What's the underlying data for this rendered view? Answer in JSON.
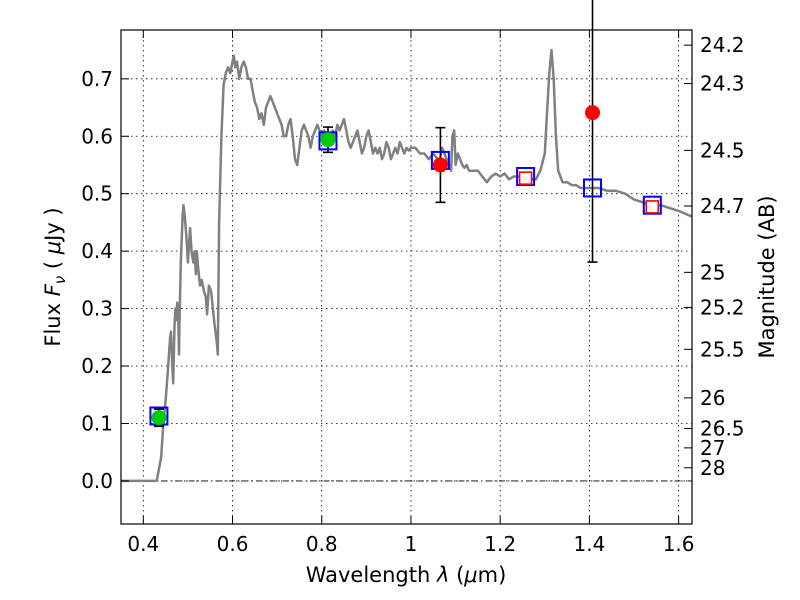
{
  "chart_data": {
    "type": "scatter",
    "xlabel_text": "Wavelength",
    "xlabel_symbol": "λ",
    "xlabel_unit_open": " (",
    "xlabel_unit_mu": "μ",
    "xlabel_unit_rest": "m)",
    "ylabel_text": "Flux",
    "ylabel_symbol_F": "F",
    "ylabel_symbol_sub": "ν",
    "ylabel_unit_open": " ( ",
    "ylabel_unit_mu": "μ",
    "ylabel_unit_rest": "Jy )",
    "y2label": "Magnitude (AB)",
    "xlim": [
      0.35,
      1.63
    ],
    "ylim": [
      -0.075,
      0.785
    ],
    "grid": true,
    "x_ticks": [
      {
        "value": 0.4,
        "label": "0.4"
      },
      {
        "value": 0.6,
        "label": "0.6"
      },
      {
        "value": 0.8,
        "label": "0.8"
      },
      {
        "value": 1.0,
        "label": "1"
      },
      {
        "value": 1.2,
        "label": "1.2"
      },
      {
        "value": 1.4,
        "label": "1.4"
      },
      {
        "value": 1.6,
        "label": "1.6"
      }
    ],
    "y_ticks": [
      {
        "value": 0.0,
        "label": "0.0"
      },
      {
        "value": 0.1,
        "label": "0.1"
      },
      {
        "value": 0.2,
        "label": "0.2"
      },
      {
        "value": 0.3,
        "label": "0.3"
      },
      {
        "value": 0.4,
        "label": "0.4"
      },
      {
        "value": 0.5,
        "label": "0.5"
      },
      {
        "value": 0.6,
        "label": "0.6"
      },
      {
        "value": 0.7,
        "label": "0.7"
      }
    ],
    "y2_ticks": [
      {
        "value": 24.2,
        "label": "24.2"
      },
      {
        "value": 24.3,
        "label": "24.3"
      },
      {
        "value": 24.5,
        "label": "24.5"
      },
      {
        "value": 24.7,
        "label": "24.7"
      },
      {
        "value": 25.0,
        "label": "25"
      },
      {
        "value": 25.2,
        "label": "25.2"
      },
      {
        "value": 25.5,
        "label": "25.5"
      },
      {
        "value": 26.0,
        "label": "26"
      },
      {
        "value": 26.5,
        "label": "26.5"
      },
      {
        "value": 27.0,
        "label": "27"
      },
      {
        "value": 28.0,
        "label": "28"
      }
    ],
    "spectrum": {
      "color": "#808080",
      "points": [
        [
          0.35,
          0.0
        ],
        [
          0.43,
          0.0
        ],
        [
          0.44,
          0.04
        ],
        [
          0.445,
          0.1
        ],
        [
          0.45,
          0.14
        ],
        [
          0.455,
          0.19
        ],
        [
          0.46,
          0.25
        ],
        [
          0.462,
          0.26
        ],
        [
          0.465,
          0.2
        ],
        [
          0.467,
          0.17
        ],
        [
          0.47,
          0.27
        ],
        [
          0.472,
          0.3
        ],
        [
          0.474,
          0.28
        ],
        [
          0.476,
          0.31
        ],
        [
          0.478,
          0.3
        ],
        [
          0.48,
          0.22
        ],
        [
          0.481,
          0.27
        ],
        [
          0.484,
          0.38
        ],
        [
          0.488,
          0.46
        ],
        [
          0.49,
          0.48
        ],
        [
          0.493,
          0.46
        ],
        [
          0.497,
          0.42
        ],
        [
          0.5,
          0.38
        ],
        [
          0.503,
          0.42
        ],
        [
          0.505,
          0.44
        ],
        [
          0.508,
          0.4
        ],
        [
          0.512,
          0.38
        ],
        [
          0.515,
          0.4
        ],
        [
          0.518,
          0.36
        ],
        [
          0.52,
          0.4
        ],
        [
          0.523,
          0.37
        ],
        [
          0.527,
          0.34
        ],
        [
          0.531,
          0.35
        ],
        [
          0.536,
          0.33
        ],
        [
          0.54,
          0.32
        ],
        [
          0.543,
          0.29
        ],
        [
          0.547,
          0.34
        ],
        [
          0.552,
          0.33
        ],
        [
          0.556,
          0.3
        ],
        [
          0.56,
          0.27
        ],
        [
          0.565,
          0.24
        ],
        [
          0.567,
          0.22
        ],
        [
          0.57,
          0.45
        ],
        [
          0.575,
          0.6
        ],
        [
          0.58,
          0.69
        ],
        [
          0.585,
          0.71
        ],
        [
          0.59,
          0.72
        ],
        [
          0.595,
          0.71
        ],
        [
          0.6,
          0.73
        ],
        [
          0.603,
          0.74
        ],
        [
          0.606,
          0.72
        ],
        [
          0.61,
          0.73
        ],
        [
          0.615,
          0.7
        ],
        [
          0.62,
          0.72
        ],
        [
          0.625,
          0.73
        ],
        [
          0.63,
          0.72
        ],
        [
          0.635,
          0.7
        ],
        [
          0.64,
          0.7
        ],
        [
          0.645,
          0.68
        ],
        [
          0.65,
          0.66
        ],
        [
          0.655,
          0.65
        ],
        [
          0.66,
          0.63
        ],
        [
          0.665,
          0.64
        ],
        [
          0.67,
          0.62
        ],
        [
          0.675,
          0.65
        ],
        [
          0.68,
          0.66
        ],
        [
          0.685,
          0.67
        ],
        [
          0.69,
          0.66
        ],
        [
          0.695,
          0.65
        ],
        [
          0.7,
          0.64
        ],
        [
          0.71,
          0.62
        ],
        [
          0.715,
          0.6
        ],
        [
          0.72,
          0.6
        ],
        [
          0.725,
          0.62
        ],
        [
          0.73,
          0.63
        ],
        [
          0.735,
          0.6
        ],
        [
          0.74,
          0.56
        ],
        [
          0.745,
          0.55
        ],
        [
          0.75,
          0.58
        ],
        [
          0.755,
          0.61
        ],
        [
          0.76,
          0.62
        ],
        [
          0.765,
          0.61
        ],
        [
          0.77,
          0.6
        ],
        [
          0.775,
          0.58
        ],
        [
          0.78,
          0.6
        ],
        [
          0.785,
          0.61
        ],
        [
          0.79,
          0.62
        ],
        [
          0.795,
          0.61
        ],
        [
          0.8,
          0.6
        ],
        [
          0.805,
          0.61
        ],
        [
          0.81,
          0.6
        ],
        [
          0.815,
          0.59
        ],
        [
          0.82,
          0.6
        ],
        [
          0.825,
          0.61
        ],
        [
          0.83,
          0.6
        ],
        [
          0.835,
          0.62
        ],
        [
          0.84,
          0.61
        ],
        [
          0.845,
          0.62
        ],
        [
          0.85,
          0.63
        ],
        [
          0.855,
          0.61
        ],
        [
          0.86,
          0.59
        ],
        [
          0.865,
          0.58
        ],
        [
          0.87,
          0.59
        ],
        [
          0.875,
          0.6
        ],
        [
          0.88,
          0.61
        ],
        [
          0.885,
          0.59
        ],
        [
          0.89,
          0.57
        ],
        [
          0.895,
          0.58
        ],
        [
          0.9,
          0.6
        ],
        [
          0.905,
          0.61
        ],
        [
          0.91,
          0.59
        ],
        [
          0.915,
          0.57
        ],
        [
          0.92,
          0.58
        ],
        [
          0.925,
          0.57
        ],
        [
          0.93,
          0.58
        ],
        [
          0.935,
          0.56
        ],
        [
          0.94,
          0.57
        ],
        [
          0.945,
          0.59
        ],
        [
          0.95,
          0.58
        ],
        [
          0.955,
          0.56
        ],
        [
          0.96,
          0.57
        ],
        [
          0.965,
          0.58
        ],
        [
          0.97,
          0.57
        ],
        [
          0.975,
          0.59
        ],
        [
          0.98,
          0.58
        ],
        [
          0.985,
          0.57
        ],
        [
          0.99,
          0.58
        ],
        [
          0.995,
          0.575
        ],
        [
          1.0,
          0.58
        ],
        [
          1.01,
          0.58
        ],
        [
          1.02,
          0.57
        ],
        [
          1.03,
          0.57
        ],
        [
          1.04,
          0.56
        ],
        [
          1.05,
          0.57
        ],
        [
          1.06,
          0.56
        ],
        [
          1.065,
          0.56
        ],
        [
          1.07,
          0.58
        ],
        [
          1.075,
          0.57
        ],
        [
          1.08,
          0.56
        ],
        [
          1.085,
          0.55
        ],
        [
          1.09,
          0.54
        ],
        [
          1.093,
          0.6
        ],
        [
          1.097,
          0.61
        ],
        [
          1.1,
          0.55
        ],
        [
          1.105,
          0.57
        ],
        [
          1.11,
          0.56
        ],
        [
          1.115,
          0.55
        ],
        [
          1.12,
          0.545
        ],
        [
          1.125,
          0.55
        ],
        [
          1.13,
          0.54
        ],
        [
          1.14,
          0.54
        ],
        [
          1.15,
          0.54
        ],
        [
          1.16,
          0.53
        ],
        [
          1.17,
          0.52
        ],
        [
          1.18,
          0.53
        ],
        [
          1.19,
          0.535
        ],
        [
          1.2,
          0.53
        ],
        [
          1.21,
          0.535
        ],
        [
          1.22,
          0.525
        ],
        [
          1.23,
          0.53
        ],
        [
          1.24,
          0.53
        ],
        [
          1.25,
          0.53
        ],
        [
          1.26,
          0.53
        ],
        [
          1.27,
          0.525
        ],
        [
          1.28,
          0.525
        ],
        [
          1.29,
          0.54
        ],
        [
          1.3,
          0.57
        ],
        [
          1.305,
          0.64
        ],
        [
          1.31,
          0.71
        ],
        [
          1.315,
          0.75
        ],
        [
          1.32,
          0.7
        ],
        [
          1.325,
          0.6
        ],
        [
          1.33,
          0.54
        ],
        [
          1.34,
          0.52
        ],
        [
          1.35,
          0.52
        ],
        [
          1.36,
          0.515
        ],
        [
          1.37,
          0.515
        ],
        [
          1.38,
          0.51
        ],
        [
          1.39,
          0.51
        ],
        [
          1.4,
          0.51
        ],
        [
          1.42,
          0.51
        ],
        [
          1.44,
          0.505
        ],
        [
          1.46,
          0.505
        ],
        [
          1.48,
          0.5
        ],
        [
          1.5,
          0.49
        ],
        [
          1.52,
          0.485
        ],
        [
          1.54,
          0.48
        ],
        [
          1.56,
          0.48
        ],
        [
          1.58,
          0.475
        ],
        [
          1.6,
          0.47
        ],
        [
          1.63,
          0.46
        ]
      ]
    },
    "series": [
      {
        "marker": "square",
        "color": "#0000ff",
        "points": [
          {
            "x": 0.435,
            "y": 0.113
          },
          {
            "x": 0.814,
            "y": 0.592
          },
          {
            "x": 1.066,
            "y": 0.558
          },
          {
            "x": 1.257,
            "y": 0.53
          },
          {
            "x": 1.407,
            "y": 0.51
          },
          {
            "x": 1.541,
            "y": 0.48
          }
        ]
      },
      {
        "marker": "circle",
        "color": "#00cc00",
        "points": [
          {
            "x": 0.435,
            "y": 0.11,
            "yerr": 0.015
          },
          {
            "x": 0.814,
            "y": 0.594,
            "yerr": 0.022
          }
        ]
      },
      {
        "marker": "circle",
        "color": "#ff0000",
        "points": [
          {
            "x": 1.066,
            "y": 0.55,
            "yerr": 0.065
          },
          {
            "x": 1.407,
            "y": 0.641,
            "yerr": 0.26
          }
        ]
      },
      {
        "marker": "open-square",
        "color": "#ff0000",
        "points": [
          {
            "x": 1.257,
            "y": 0.527
          },
          {
            "x": 1.541,
            "y": 0.477
          }
        ]
      }
    ]
  }
}
